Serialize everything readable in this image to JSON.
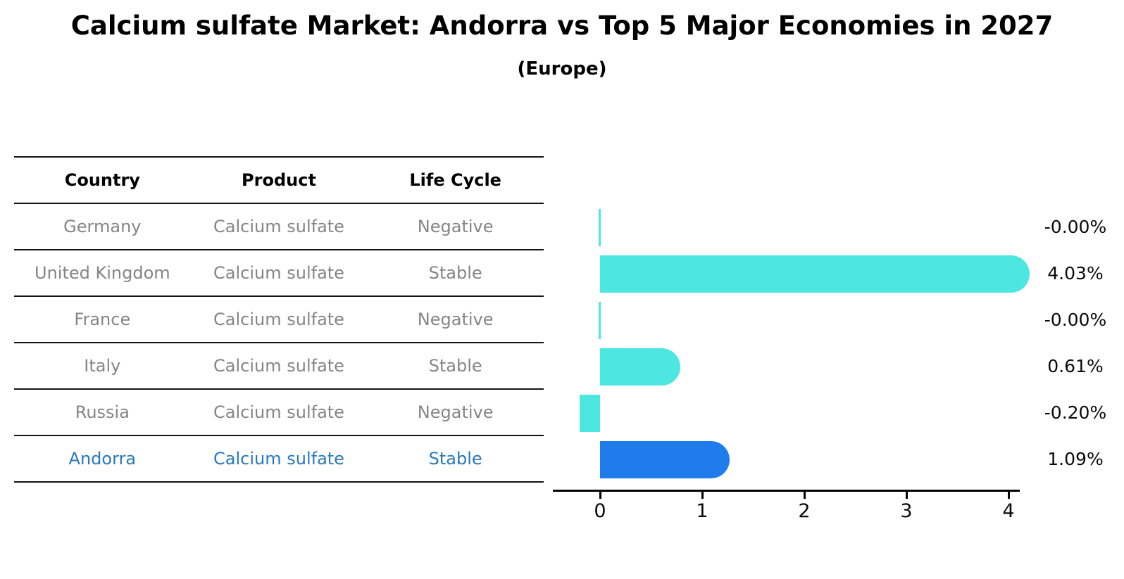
{
  "title": "Calcium sulfate Market: Andorra vs Top 5 Major Economies in 2027",
  "subtitle": "(Europe)",
  "table": {
    "headers": [
      "Country",
      "Product",
      "Life Cycle"
    ],
    "rows": [
      {
        "country": "Germany",
        "product": "Calcium sulfate",
        "life_cycle": "Negative",
        "highlight": false
      },
      {
        "country": "United Kingdom",
        "product": "Calcium sulfate",
        "life_cycle": "Stable",
        "highlight": false
      },
      {
        "country": "France",
        "product": "Calcium sulfate",
        "life_cycle": "Negative",
        "highlight": false
      },
      {
        "country": "Italy",
        "product": "Calcium sulfate",
        "life_cycle": "Stable",
        "highlight": false
      },
      {
        "country": "Russia",
        "product": "Calcium sulfate",
        "life_cycle": "Negative",
        "highlight": false
      },
      {
        "country": "Andorra",
        "product": "Calcium sulfate",
        "life_cycle": "Stable",
        "highlight": true
      }
    ]
  },
  "chart_data": {
    "type": "bar",
    "orientation": "horizontal",
    "title": "Calcium sulfate Market: Andorra vs Top 5 Major Economies in 2027",
    "subtitle": "(Europe)",
    "categories": [
      "Germany",
      "United Kingdom",
      "France",
      "Italy",
      "Russia",
      "Andorra"
    ],
    "values": [
      -0.0,
      4.03,
      -0.0,
      0.61,
      -0.2,
      1.09
    ],
    "value_labels": [
      "-0.00%",
      "4.03%",
      "-0.00%",
      "0.61%",
      "-0.20%",
      "1.09%"
    ],
    "x_ticks": [
      "0",
      "1",
      "2",
      "3",
      "4"
    ],
    "xlim": [
      -0.46,
      4.1
    ],
    "grid": false,
    "legend": "none",
    "highlight_index": 5,
    "colors": {
      "bar_default": "#4DE7E2",
      "bar_highlight": "#1E7CEB",
      "highlight_text": "#2878BE",
      "row_text": "#858585",
      "header_text": "#000000",
      "axis": "#000000"
    }
  }
}
